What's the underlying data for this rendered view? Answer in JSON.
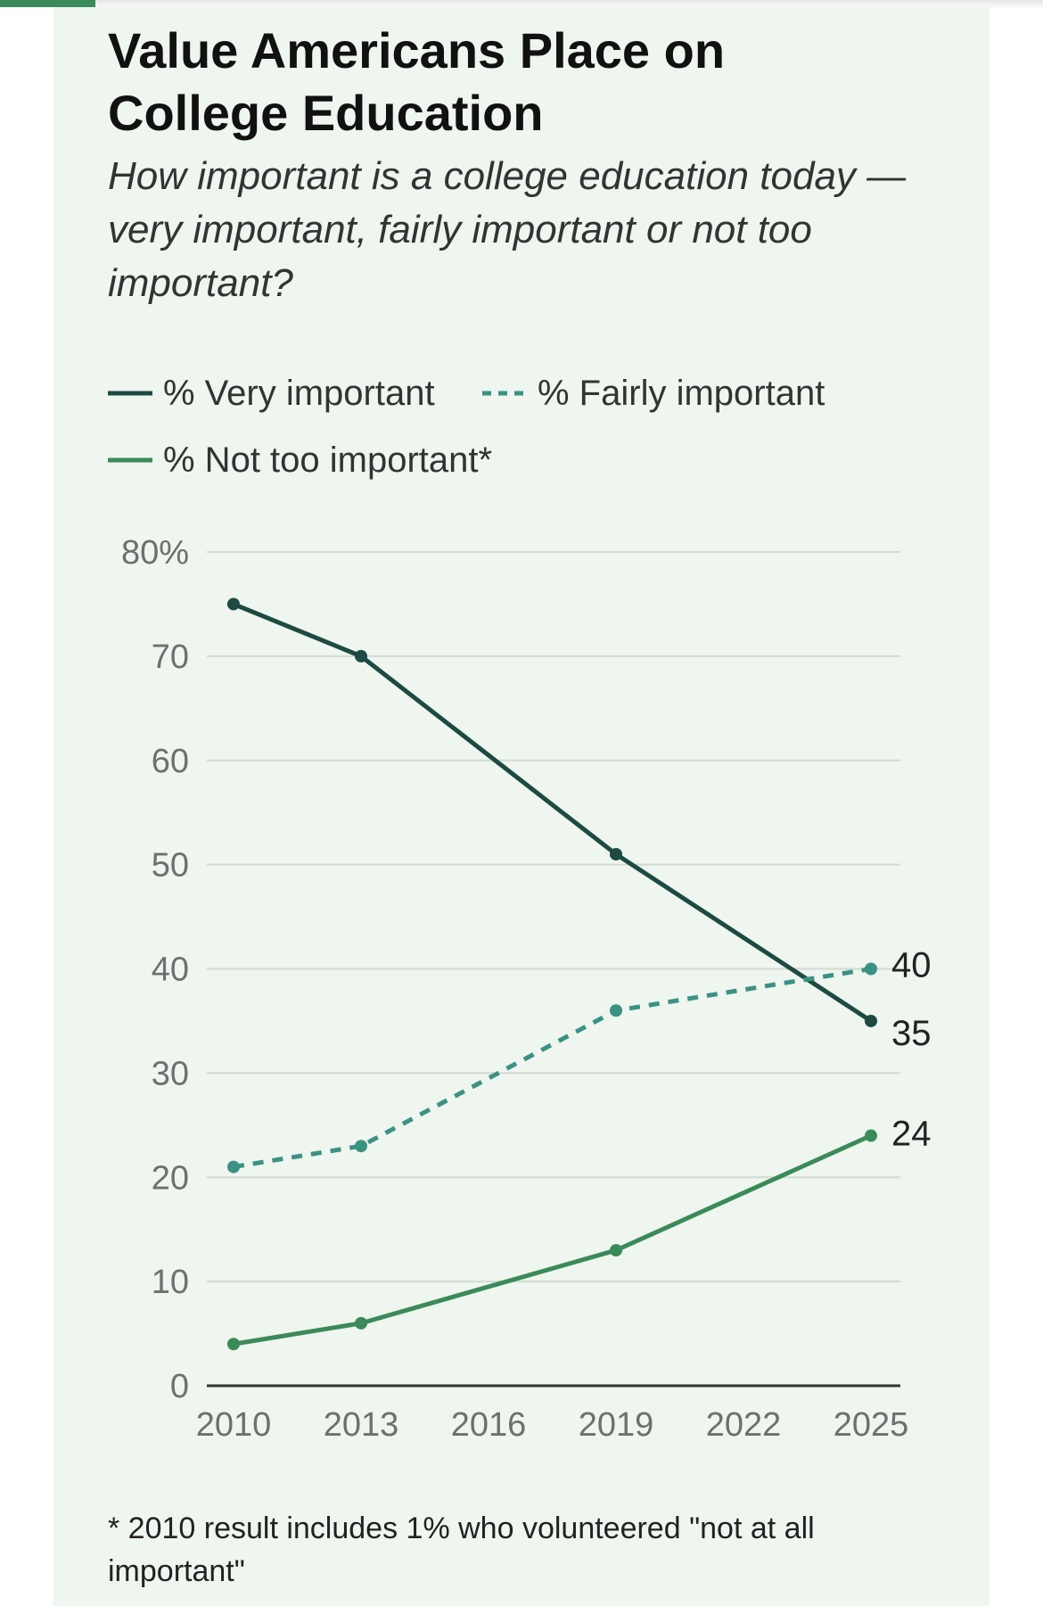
{
  "title": "Value Americans Place on College Education",
  "subtitle": "How important is a college education today — very important, fairly important or not too important?",
  "legend": {
    "very": "% Very important",
    "fairly": "% Fairly important",
    "not_too": "% Not too important*"
  },
  "footnote": "* 2010 result includes 1% who volunteered \"not at all important\"",
  "colors": {
    "very": "#1d4a43",
    "fairly": "#3a9283",
    "not_too": "#3b8a59",
    "background": "#eff5ef",
    "accent": "#3b8a59"
  },
  "chart_data": {
    "type": "line",
    "x_tick_labels": [
      "2010",
      "2013",
      "2016",
      "2019",
      "2022",
      "2025"
    ],
    "x_ticks": [
      2010,
      2013,
      2016,
      2019,
      2022,
      2025
    ],
    "y_tick_labels": [
      "0",
      "10",
      "20",
      "30",
      "40",
      "50",
      "60",
      "70",
      "80%"
    ],
    "y_ticks": [
      0,
      10,
      20,
      30,
      40,
      50,
      60,
      70,
      80
    ],
    "xlim": [
      2010,
      2025
    ],
    "ylim": [
      0,
      80
    ],
    "grid": true,
    "legend_position": "top",
    "series": [
      {
        "key": "very",
        "name": "% Very important",
        "style": "solid",
        "x": [
          2010,
          2013,
          2019,
          2025
        ],
        "y": [
          75,
          70,
          51,
          35
        ],
        "end_label": "35"
      },
      {
        "key": "fairly",
        "name": "% Fairly important",
        "style": "dashed",
        "x": [
          2010,
          2013,
          2019,
          2025
        ],
        "y": [
          21,
          23,
          36,
          40
        ],
        "end_label": "40"
      },
      {
        "key": "not_too",
        "name": "% Not too important*",
        "style": "solid",
        "x": [
          2010,
          2013,
          2019,
          2025
        ],
        "y": [
          4,
          6,
          13,
          24
        ],
        "end_label": "24"
      }
    ]
  }
}
